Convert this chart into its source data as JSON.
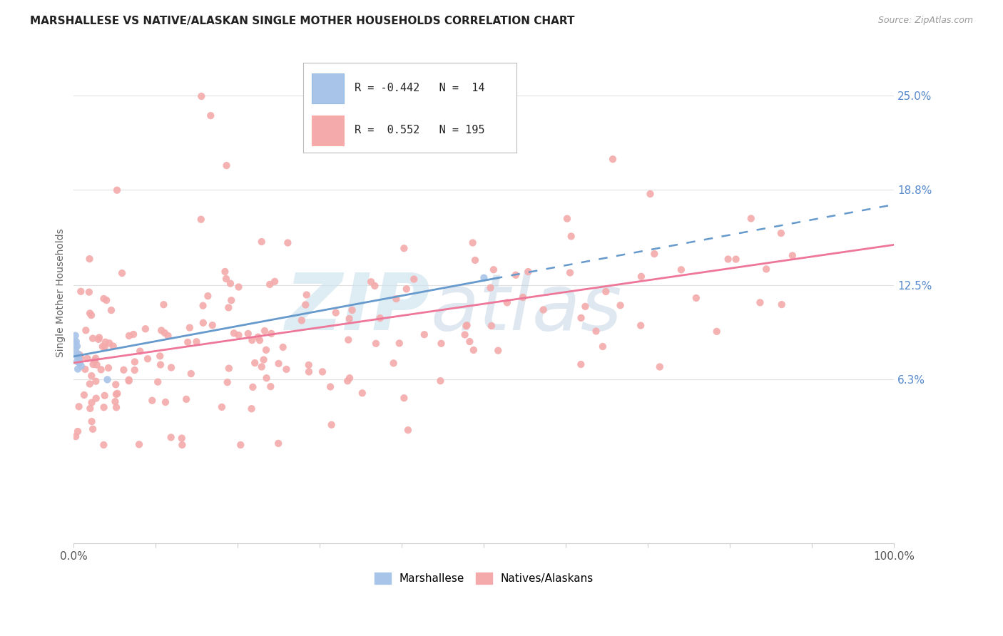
{
  "title": "MARSHALLESE VS NATIVE/ALASKAN SINGLE MOTHER HOUSEHOLDS CORRELATION CHART",
  "source": "Source: ZipAtlas.com",
  "ylabel": "Single Mother Households",
  "ytick_labels": [
    "6.3%",
    "12.5%",
    "18.8%",
    "25.0%"
  ],
  "ytick_values": [
    0.063,
    0.125,
    0.188,
    0.25
  ],
  "legend_blue_r": "-0.442",
  "legend_blue_n": "14",
  "legend_pink_r": "0.552",
  "legend_pink_n": "195",
  "legend_label_blue": "Marshallese",
  "legend_label_pink": "Natives/Alaskans",
  "blue_color": "#A8C4E8",
  "pink_color": "#F4AAAA",
  "blue_line_color": "#6699CC",
  "pink_line_color": "#EE7799",
  "background_color": "#FFFFFF",
  "grid_color": "#E0E0E0",
  "xlim": [
    0.0,
    1.0
  ],
  "ylim": [
    -0.045,
    0.285
  ]
}
